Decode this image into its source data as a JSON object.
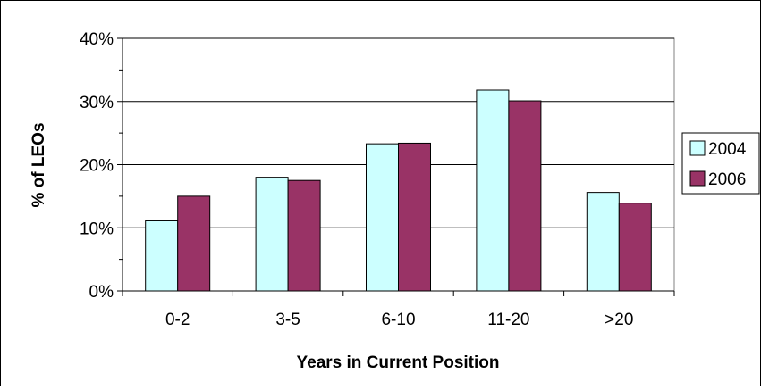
{
  "chart_data": {
    "type": "bar",
    "title": "",
    "xlabel": "Years in Current Position",
    "ylabel": "% of LEOs",
    "categories": [
      "0-2",
      "3-5",
      "6-10",
      "11-20",
      ">20"
    ],
    "series": [
      {
        "name": "2004",
        "values": [
          11.1,
          18.0,
          23.3,
          31.8,
          15.6
        ],
        "color": "#ccffff"
      },
      {
        "name": "2006",
        "values": [
          15.0,
          17.5,
          23.4,
          30.1,
          13.9
        ],
        "color": "#993366"
      }
    ],
    "ylim": [
      0,
      40
    ],
    "yticks": [
      0,
      10,
      20,
      30,
      40
    ],
    "ytick_labels": [
      "0%",
      "10%",
      "20%",
      "30%",
      "40%"
    ],
    "grid": true,
    "legend_position": "right"
  }
}
